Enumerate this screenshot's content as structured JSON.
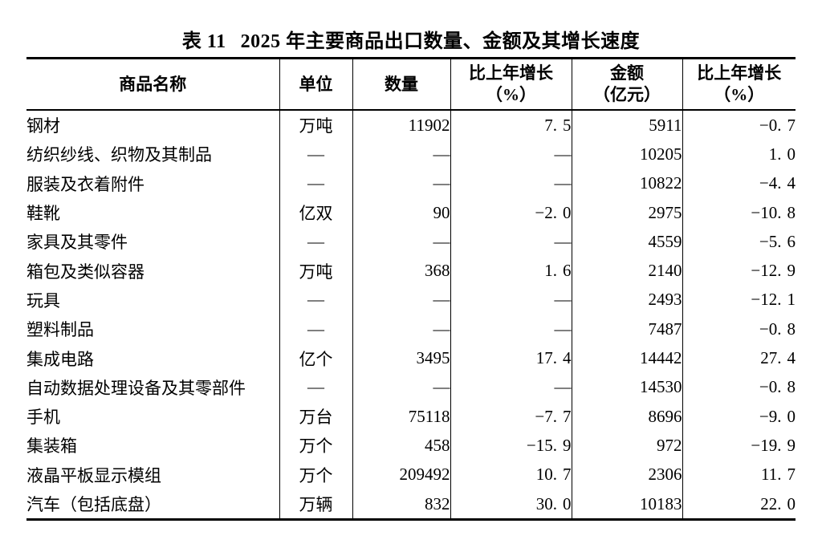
{
  "title": {
    "tag": "表 11",
    "text": "2025 年主要商品出口数量、金额及其增长速度"
  },
  "colors": {
    "text": "#000000",
    "background": "#ffffff",
    "border": "#000000"
  },
  "table": {
    "columns": [
      {
        "label": "商品名称",
        "sub": ""
      },
      {
        "label": "单位",
        "sub": ""
      },
      {
        "label": "数量",
        "sub": ""
      },
      {
        "label": "比上年增长",
        "sub": "（%）"
      },
      {
        "label": "金额",
        "sub": "（亿元）"
      },
      {
        "label": "比上年增长",
        "sub": "（%）"
      }
    ],
    "rows": [
      [
        "钢材",
        "万吨",
        "11902",
        "7.5",
        "5911",
        "-0.7"
      ],
      [
        "纺织纱线、织物及其制品",
        "—",
        "—",
        "—",
        "10205",
        "1.0"
      ],
      [
        "服装及衣着附件",
        "—",
        "—",
        "—",
        "10822",
        "-4.4"
      ],
      [
        "鞋靴",
        "亿双",
        "90",
        "-2.0",
        "2975",
        "-10.8"
      ],
      [
        "家具及其零件",
        "—",
        "—",
        "—",
        "4559",
        "-5.6"
      ],
      [
        "箱包及类似容器",
        "万吨",
        "368",
        "1.6",
        "2140",
        "-12.9"
      ],
      [
        "玩具",
        "—",
        "—",
        "—",
        "2493",
        "-12.1"
      ],
      [
        "塑料制品",
        "—",
        "—",
        "—",
        "7487",
        "-0.8"
      ],
      [
        "集成电路",
        "亿个",
        "3495",
        "17.4",
        "14442",
        "27.4"
      ],
      [
        "自动数据处理设备及其零部件",
        "—",
        "—",
        "—",
        "14530",
        "-0.8"
      ],
      [
        "手机",
        "万台",
        "75118",
        "-7.7",
        "8696",
        "-9.0"
      ],
      [
        "集装箱",
        "万个",
        "458",
        "-15.9",
        "972",
        "-19.9"
      ],
      [
        "液晶平板显示模组",
        "万个",
        "209492",
        "10.7",
        "2306",
        "11.7"
      ],
      [
        "汽车（包括底盘）",
        "万辆",
        "832",
        "30.0",
        "10183",
        "22.0"
      ]
    ]
  }
}
